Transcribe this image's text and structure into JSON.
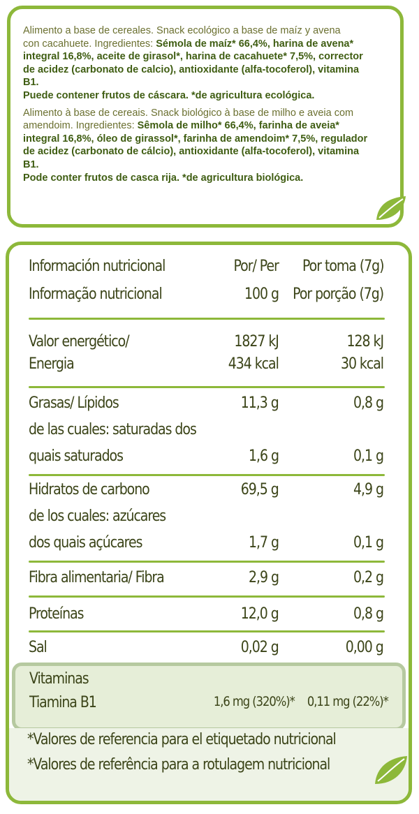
{
  "ingredients": {
    "es": [
      {
        "t": "Alimento a base de cereales. Snack ecológico a base de maíz y avena"
      },
      {
        "t": "con cacahuete. Ingredientes: ",
        "b": "Sémola de maíz* 66,4%, harina de avena*"
      },
      {
        "b": "integral 16,8%, aceite de girasol*, harina de cacahuete* 7,5%, corrector"
      },
      {
        "b": "de acidez (carbonato de calcio), antioxidante (alfa-tocoferol), vitamina"
      },
      {
        "b": "B1."
      },
      {
        "b": "Puede contener frutos de cáscara.  *de agricultura ecológica."
      }
    ],
    "pt": [
      {
        "t": "Alimento à base de cereais. Snack biológico à base de milho e aveia com"
      },
      {
        "t": "amendoim. Ingredientes: ",
        "b": "Sêmola de milho* 66,4%, farinha de aveia*"
      },
      {
        "b": "integral 16,8%, óleo de girassol*, farinha de amendoim* 7,5%, regulador"
      },
      {
        "b": "de acidez (carbonato de cálcio), antioxidante (alfa-tocoferol), vitamina"
      },
      {
        "b": "B1."
      },
      {
        "b": "Pode conter frutos de casca rija.     *de agricultura biológica."
      }
    ]
  },
  "nutrition": {
    "header": {
      "label_es": "Información nutricional",
      "label_pt": "Informação nutricional",
      "per100_a": "Por/ Per",
      "per100_b": "100 g",
      "portion_a": "Por toma (7g)",
      "portion_b": "Por porção (7g)"
    },
    "energy": {
      "label_a": "Valor energético/",
      "label_b": "Energia",
      "v100_kj": "1827 kJ",
      "v100_kcal": "434 kcal",
      "vp_kj": "128 kJ",
      "vp_kcal": "30 kcal"
    },
    "fat": {
      "label": "Grasas/ Lípidos",
      "v100": "11,3 g",
      "vp": "0,8 g",
      "sub_a": "de las cuales: saturadas  dos",
      "sub_b": "quais saturados",
      "sub_v100": "1,6 g",
      "sub_vp": "0,1 g"
    },
    "carbs": {
      "label": "Hidratos de carbono",
      "v100": "69,5 g",
      "vp": "4,9 g",
      "sub_a": "de los cuales: azúcares",
      "sub_b": "dos quais açúcares",
      "sub_v100": "1,7 g",
      "sub_vp": "0,1 g"
    },
    "fibre": {
      "label": "Fibra alimentaria/ Fibra",
      "v100": "2,9 g",
      "vp": "0,2 g"
    },
    "protein": {
      "label": "Proteínas",
      "v100": "12,0 g",
      "vp": "0,8 g"
    },
    "salt": {
      "label": "Sal",
      "v100": "0,02 g",
      "vp": "0,00 g"
    },
    "vitamins": {
      "label": "Vitaminas",
      "thiamine": "Tiamina B1",
      "v100": "1,6 mg (320%)*",
      "vp": "0,11 mg (22%)*"
    },
    "footnote_es": "*Valores de referencia para el etiquetado nutricional",
    "footnote_pt": "*Valores de referência para a rotulagem nutricional"
  },
  "colors": {
    "border": "#8db83a",
    "text": "#3b4418",
    "band": "#e6eed8",
    "leaf": "#8db83a"
  },
  "icons": [
    "leaf-icon",
    "leaf-icon"
  ]
}
